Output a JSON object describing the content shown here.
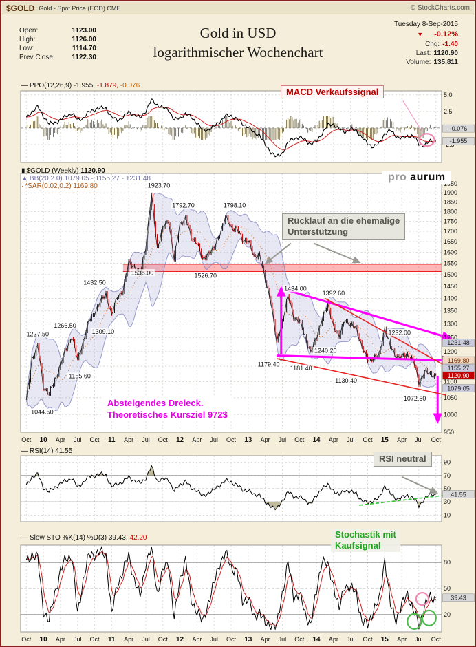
{
  "header": {
    "symbol": "$GOLD",
    "description": "Gold - Spot Price (EOD) CME",
    "copyright": "© StockCharts.com"
  },
  "quote": {
    "date": "Tuesday 8-Sep-2015",
    "pct_change": "-0.12%",
    "left_rows": [
      {
        "label": "Open:",
        "value": "1123.00"
      },
      {
        "label": "High:",
        "value": "1126.00"
      },
      {
        "label": "Low:",
        "value": "1114.70"
      },
      {
        "label": "Prev Close:",
        "value": "1122.30"
      }
    ],
    "right_rows": [
      {
        "label": "Chg:",
        "value": "-1.40",
        "red": true
      },
      {
        "label": "Last:",
        "value": "1120.90",
        "red": false
      },
      {
        "label": "Volume:",
        "value": "135,811",
        "red": false
      }
    ]
  },
  "title": {
    "line1": "Gold in USD",
    "line2": "logarithmischer Wochenchart"
  },
  "legends": {
    "ppo": {
      "name": "PPO(12,26,9)",
      "v1": "-1.955,",
      "v2": "-1.879,",
      "v3": "-0.076"
    },
    "main_line1_name": "$GOLD (Weekly)",
    "main_line1_val": "1120.90",
    "main_line2": "BB(20,2.0) 1079.05 - 1155.27 - 1231.48",
    "main_line3": "*SAR(0.02,0.2) 1169.80",
    "rsi_name": "RSI(14)",
    "rsi_val": "41.55",
    "sto_name": "Slow STO %K(14) %D(3)",
    "sto_v1": "39.43,",
    "sto_v2": "42.20"
  },
  "annotations": {
    "macd": "MACD Verkaufssignal",
    "pullback1": "Rücklauf an die ehemalige",
    "pullback2": "Unterstützung",
    "triangle1": "Absteigendes Dreieck.",
    "triangle2": "Theoretisches Kursziel 972$",
    "rsi": "RSI neutral",
    "sto1": "Stochastik mit",
    "sto2": "Kaufsignal",
    "logo_pro": "pro",
    "logo_aurum": "aurum"
  },
  "colors": {
    "magenta": "#FF00FF",
    "signal_red": "#CC2020",
    "green": "#2FAF2F",
    "band_red": "#E80000",
    "last_badge": "#C00000"
  },
  "chart_data": {
    "type": "multi-panel-financial",
    "x_unit": "months since Oct-2009 (weekly chart Oct-2009 to Oct-2015)",
    "xticks": [
      {
        "m": 0,
        "label": "Oct"
      },
      {
        "m": 3,
        "label": "10",
        "year": true
      },
      {
        "m": 6,
        "label": "Apr"
      },
      {
        "m": 9,
        "label": "Jul"
      },
      {
        "m": 12,
        "label": "Oct"
      },
      {
        "m": 15,
        "label": "11",
        "year": true
      },
      {
        "m": 18,
        "label": "Apr"
      },
      {
        "m": 21,
        "label": "Jul"
      },
      {
        "m": 24,
        "label": "Oct"
      },
      {
        "m": 27,
        "label": "12",
        "year": true
      },
      {
        "m": 30,
        "label": "Apr"
      },
      {
        "m": 33,
        "label": "Jul"
      },
      {
        "m": 36,
        "label": "Oct"
      },
      {
        "m": 39,
        "label": "13",
        "year": true
      },
      {
        "m": 42,
        "label": "Apr"
      },
      {
        "m": 45,
        "label": "Jul"
      },
      {
        "m": 48,
        "label": "Oct"
      },
      {
        "m": 51,
        "label": "14",
        "year": true
      },
      {
        "m": 54,
        "label": "Apr"
      },
      {
        "m": 57,
        "label": "Jul"
      },
      {
        "m": 60,
        "label": "Oct"
      },
      {
        "m": 63,
        "label": "15",
        "year": true
      },
      {
        "m": 66,
        "label": "Apr"
      },
      {
        "m": 69,
        "label": "Jul"
      },
      {
        "m": 72,
        "label": "Oct"
      }
    ],
    "panels": {
      "ppo": {
        "type": "line+histogram",
        "name": "PPO(12,26,9)",
        "last": {
          "ppo": -1.955,
          "signal": -1.879,
          "hist": -0.076
        },
        "ylim": [
          -5.2,
          5.6
        ],
        "yticks": [
          {
            "y": 5.0,
            "label": "5.0"
          },
          {
            "y": 2.5,
            "label": "2.5"
          },
          {
            "y": -2.5,
            "label": "-2.5"
          }
        ],
        "values_monthly": [
          1.5,
          2.5,
          3.2,
          1.8,
          0.6,
          0.8,
          1.2,
          1.8,
          2.2,
          1.2,
          1.5,
          2.4,
          2.8,
          3.0,
          3.0,
          1.6,
          1.2,
          1.6,
          2.4,
          2.0,
          1.5,
          2.6,
          4.2,
          3.5,
          3.0,
          2.8,
          1.2,
          1.5,
          2.2,
          1.6,
          0.8,
          -0.4,
          -0.2,
          0.2,
          1.0,
          1.8,
          1.8,
          1.4,
          0.6,
          0.2,
          -0.8,
          -1.0,
          -2.6,
          -3.6,
          -4.4,
          -3.8,
          -2.2,
          -1.6,
          -1.4,
          -1.8,
          -2.4,
          -2.0,
          -0.8,
          0.4,
          0.6,
          -0.2,
          -0.6,
          -0.2,
          -0.4,
          -1.4,
          -2.4,
          -2.8,
          -2.4,
          -0.8,
          -0.4,
          -1.2,
          -1.6,
          -1.2,
          -1.2,
          -2.4,
          -2.6,
          -2.0,
          -1.955
        ],
        "badges": [
          {
            "y": -0.076,
            "label": "-0.076",
            "bg": "#D9D9D9",
            "fg": "#222"
          },
          {
            "y": -1.955,
            "label": "-1.955",
            "bg": "#D9D9D9",
            "fg": "#222"
          }
        ],
        "shapes": [
          {
            "kind": "line",
            "m1": 66.2,
            "y1": 4.1,
            "m2": 69.6,
            "y2": -0.6,
            "color": "#F0A0C8",
            "w": 1.2
          },
          {
            "kind": "ellipse",
            "m": 70.4,
            "y": -1.8,
            "rxp": 11,
            "ryp": 9,
            "color": "#F08CB4"
          }
        ]
      },
      "price": {
        "type": "candlestick",
        "name": "$GOLD Weekly",
        "scale": "log",
        "last": 1120.9,
        "bollinger": {
          "period": 20,
          "stdev": 2.0,
          "lower": 1079.05,
          "mid": 1155.27,
          "upper": 1231.48
        },
        "sar": {
          "step": 0.02,
          "max": 0.2,
          "value": 1169.8
        },
        "ylim": [
          950,
          2010
        ],
        "yticks": [
          1950,
          1900,
          1850,
          1800,
          1750,
          1700,
          1650,
          1600,
          1550,
          1500,
          1450,
          1400,
          1350,
          1300,
          1250,
          1200,
          1150,
          1100,
          1050,
          1000,
          950
        ],
        "close_monthly": [
          1040,
          1175,
          1218,
          1085,
          1060,
          1105,
          1155,
          1210,
          1255,
          1170,
          1237,
          1310,
          1345,
          1385,
          1420,
          1330,
          1410,
          1430,
          1555,
          1535,
          1500,
          1630,
          1885,
          1620,
          1715,
          1755,
          1565,
          1735,
          1770,
          1665,
          1650,
          1560,
          1600,
          1615,
          1690,
          1770,
          1720,
          1715,
          1655,
          1660,
          1575,
          1595,
          1470,
          1390,
          1230,
          1310,
          1410,
          1325,
          1315,
          1250,
          1200,
          1245,
          1325,
          1370,
          1295,
          1250,
          1320,
          1295,
          1285,
          1215,
          1170,
          1180,
          1185,
          1285,
          1215,
          1185,
          1180,
          1190,
          1172,
          1095,
          1135,
          1121,
          1121
        ],
        "point_labels": [
          {
            "text": "1227.50",
            "m": 2.0,
            "p": 1262
          },
          {
            "text": "1044.50",
            "m": 2.8,
            "p": 1008
          },
          {
            "text": "1266.50",
            "m": 6.8,
            "p": 1294
          },
          {
            "text": "1155.60",
            "m": 9.4,
            "p": 1118
          },
          {
            "text": "1432.50",
            "m": 12.0,
            "p": 1466
          },
          {
            "text": "1309.10",
            "m": 13.5,
            "p": 1272
          },
          {
            "text": "1923.70",
            "m": 23.3,
            "p": 1942
          },
          {
            "text": "1535.00",
            "m": 20.4,
            "p": 1508
          },
          {
            "text": "1792.70",
            "m": 27.6,
            "p": 1832
          },
          {
            "text": "1526.70",
            "m": 31.5,
            "p": 1496
          },
          {
            "text": "1798.10",
            "m": 36.6,
            "p": 1832
          },
          {
            "text": "1434.00",
            "m": 47.3,
            "p": 1440
          },
          {
            "text": "1179.40",
            "m": 42.6,
            "p": 1156
          },
          {
            "text": "1392.60",
            "m": 54.0,
            "p": 1422
          },
          {
            "text": "1240.20",
            "m": 52.6,
            "p": 1204
          },
          {
            "text": "1181.40",
            "m": 48.3,
            "p": 1144
          },
          {
            "text": "1130.40",
            "m": 56.2,
            "p": 1104
          },
          {
            "text": "1232.00",
            "m": 65.6,
            "p": 1268
          },
          {
            "text": "1072.50",
            "m": 68.3,
            "p": 1048
          }
        ],
        "badges": [
          {
            "y": 1231.48,
            "label": "1231.48",
            "bg": "#CBCBDE",
            "fg": "#222"
          },
          {
            "y": 1169.8,
            "label": "1169.80",
            "bg": "#F2D8C0",
            "fg": "#7a3000"
          },
          {
            "y": 1155.27,
            "label": "1155.27",
            "bg": "#CBCBDE",
            "fg": "#222"
          },
          {
            "y": 1120.9,
            "label": "1120.90",
            "bg": "#C00000",
            "fg": "#FFFFFF"
          },
          {
            "y": 1079.05,
            "label": "1079.05",
            "bg": "#CBCBDE",
            "fg": "#222"
          }
        ],
        "shapes": [
          {
            "kind": "band",
            "m1": 17,
            "m2": 74,
            "y1": 1546,
            "y2": 1514,
            "fill": "rgba(255,0,0,0.28)",
            "stroke": "#E80000"
          },
          {
            "kind": "line",
            "m1": 45.8,
            "y1": 1434,
            "m2": 73.8,
            "y2": 1252,
            "color": "#FF00FF",
            "w": 3,
            "arrow": true
          },
          {
            "kind": "line",
            "m1": 44.0,
            "y1": 1186,
            "m2": 73.8,
            "y2": 1170,
            "color": "#FF00FF",
            "w": 3,
            "arrow": true
          },
          {
            "kind": "line",
            "m1": 44.8,
            "y1": 1192,
            "m2": 44.8,
            "y2": 1424,
            "color": "#FF00FF",
            "w": 3,
            "arrow": true
          },
          {
            "kind": "line",
            "m1": 72.3,
            "y1": 1118,
            "m2": 72.3,
            "y2": 992,
            "color": "#FF00FF",
            "w": 3,
            "arrow": true
          },
          {
            "kind": "line",
            "m1": 52.5,
            "y1": 1400,
            "m2": 73.8,
            "y2": 1150,
            "color": "#E82222",
            "w": 1.6
          },
          {
            "kind": "line",
            "m1": 44.0,
            "y1": 1176,
            "m2": 73.8,
            "y2": 1058,
            "color": "#E82222",
            "w": 1.6
          },
          {
            "kind": "line",
            "m1": 46.5,
            "y1": 1642,
            "m2": 42.6,
            "y2": 1560,
            "color": "#9a9a94",
            "w": 2,
            "arrow": true
          },
          {
            "kind": "line",
            "m1": 50.5,
            "y1": 1642,
            "m2": 58.0,
            "y2": 1560,
            "color": "#9a9a94",
            "w": 2,
            "arrow": true
          }
        ]
      },
      "rsi": {
        "type": "line",
        "name": "RSI(14)",
        "last": 41.55,
        "ylim": [
          0,
          100
        ],
        "yticks": [
          90,
          70,
          50,
          30,
          10
        ],
        "hlines": [
          70,
          30
        ],
        "values_monthly": [
          55,
          68,
          72,
          52,
          45,
          52,
          58,
          62,
          66,
          52,
          60,
          68,
          70,
          72,
          71,
          52,
          58,
          60,
          68,
          62,
          58,
          66,
          83,
          62,
          64,
          64,
          46,
          56,
          62,
          50,
          48,
          38,
          44,
          48,
          56,
          62,
          60,
          56,
          48,
          48,
          40,
          42,
          28,
          25,
          18,
          32,
          45,
          38,
          38,
          32,
          28,
          38,
          52,
          55,
          48,
          40,
          48,
          45,
          43,
          32,
          28,
          32,
          35,
          55,
          42,
          35,
          36,
          40,
          36,
          24,
          35,
          41.55,
          41.55
        ],
        "badges": [
          {
            "y": 41.55,
            "label": "41.55",
            "bg": "#D9D9D9",
            "fg": "#222"
          }
        ],
        "shapes": [
          {
            "kind": "line",
            "m1": 58.5,
            "y1": 25,
            "m2": 73.5,
            "y2": 40,
            "color": "#2FBF2F",
            "w": 1.6,
            "dash": "5,3"
          },
          {
            "kind": "line",
            "m1": 66.0,
            "y1": 68,
            "m2": 71.6,
            "y2": 46,
            "color": "#9a9a94",
            "w": 2,
            "arrow": true
          }
        ]
      },
      "sto": {
        "type": "line",
        "name": "Slow STO %K(14) %D(3)",
        "last_k": 39.43,
        "last_d": 42.2,
        "ylim": [
          0,
          100
        ],
        "yticks": [
          80,
          50,
          20
        ],
        "hlines": [
          80,
          20
        ],
        "k_monthly": [
          80,
          90,
          85,
          25,
          12,
          45,
          70,
          85,
          88,
          20,
          60,
          88,
          90,
          92,
          88,
          20,
          55,
          70,
          88,
          60,
          40,
          80,
          95,
          45,
          70,
          80,
          15,
          60,
          85,
          35,
          25,
          10,
          35,
          55,
          80,
          90,
          75,
          70,
          35,
          40,
          15,
          25,
          8,
          10,
          5,
          45,
          80,
          40,
          45,
          20,
          10,
          45,
          85,
          75,
          55,
          25,
          55,
          50,
          45,
          12,
          8,
          25,
          35,
          85,
          30,
          15,
          30,
          45,
          25,
          8,
          30,
          39.43,
          39.43
        ],
        "badges": [
          {
            "y": 39.43,
            "label": "39.43",
            "bg": "#D9D9D9",
            "fg": "#222"
          }
        ],
        "shapes": [
          {
            "kind": "ellipse",
            "m": 68.2,
            "y": 12,
            "rxp": 10,
            "ryp": 11,
            "color": "#4CBB4C"
          },
          {
            "kind": "ellipse",
            "m": 70.8,
            "y": 16,
            "rxp": 10,
            "ryp": 11,
            "color": "#4CBB4C"
          },
          {
            "kind": "ellipse",
            "m": 69.6,
            "y": 38,
            "rxp": 9,
            "ryp": 9,
            "color": "#F08CB4"
          }
        ]
      }
    }
  }
}
